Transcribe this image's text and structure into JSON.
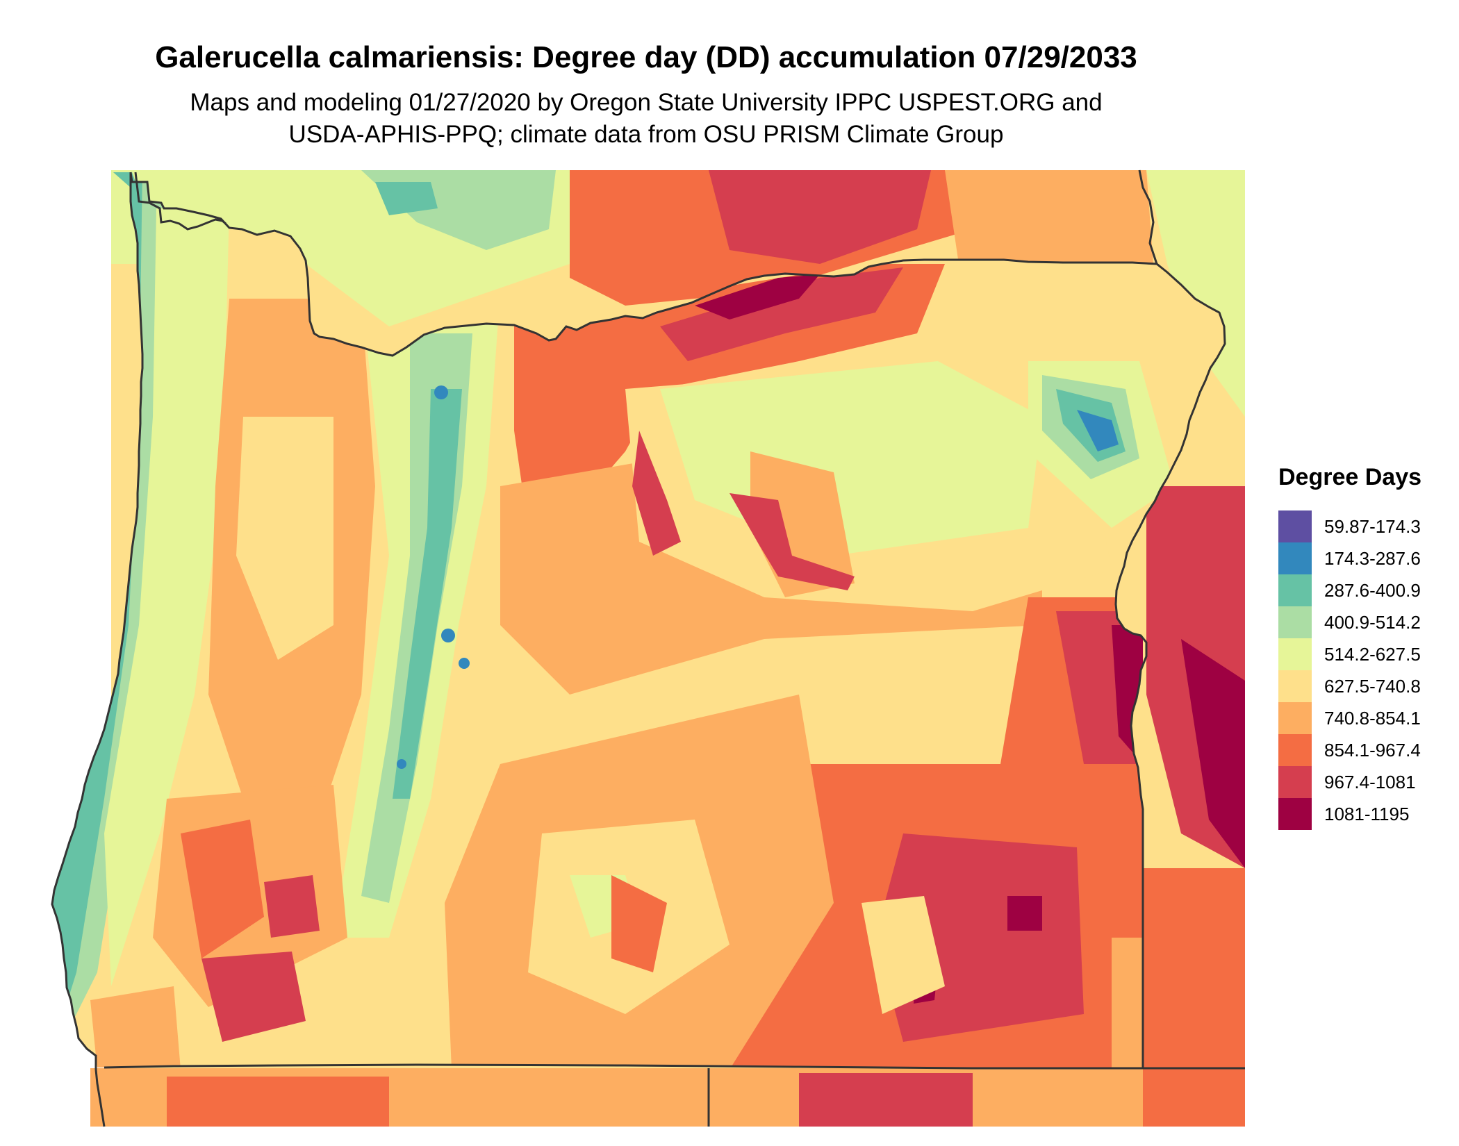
{
  "title": "Galerucella calmariensis: Degree day (DD) accumulation 07/29/2033",
  "subtitle_line1": "Maps and modeling 01/27/2020 by Oregon State University IPPC USPEST.ORG and",
  "subtitle_line2": "USDA-APHIS-PPQ; climate data from OSU PRISM Climate Group",
  "legend": {
    "title": "Degree Days",
    "items": [
      {
        "label": "59.87-174.3",
        "color": "#5e4fa2"
      },
      {
        "label": "174.3-287.6",
        "color": "#3288bd"
      },
      {
        "label": "287.6-400.9",
        "color": "#66c2a5"
      },
      {
        "label": "400.9-514.2",
        "color": "#abdda4"
      },
      {
        "label": "514.2-627.5",
        "color": "#e6f598"
      },
      {
        "label": "627.5-740.8",
        "color": "#fee08b"
      },
      {
        "label": "740.8-854.1",
        "color": "#fdae61"
      },
      {
        "label": "854.1-967.4",
        "color": "#f46d43"
      },
      {
        "label": "967.4-1081",
        "color": "#d53e4f"
      },
      {
        "label": "1081-1195",
        "color": "#9e0142"
      }
    ]
  }
}
